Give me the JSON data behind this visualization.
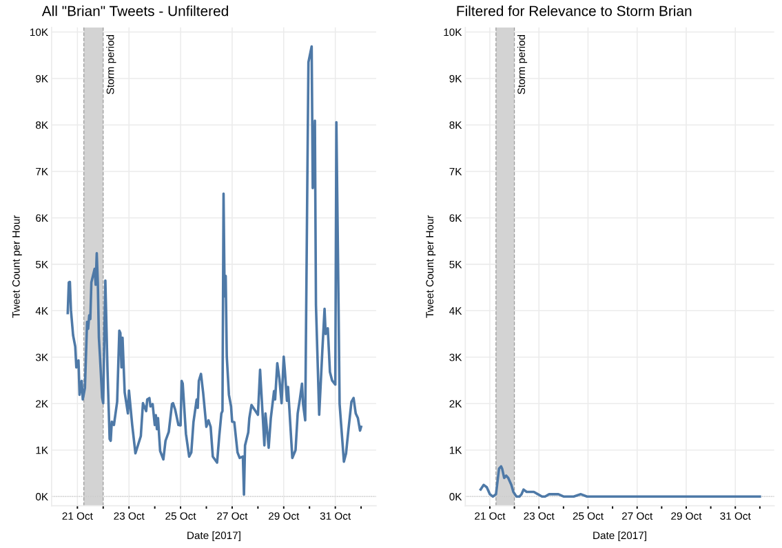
{
  "chart_data": [
    {
      "type": "line",
      "title": "All \"Brian\" Tweets - Unfiltered",
      "xlabel": "Date [2017]",
      "ylabel": "Tweet Count per Hour",
      "x": [
        "2017-10-20T15:00",
        "2017-10-20T16:00",
        "2017-10-20T17:00",
        "2017-10-20T18:00",
        "2017-10-20T20:00",
        "2017-10-20T22:00",
        "2017-10-20T23:00",
        "2017-10-21T01:00",
        "2017-10-21T02:00",
        "2017-10-21T04:00",
        "2017-10-21T05:00",
        "2017-10-21T07:00",
        "2017-10-21T09:00",
        "2017-10-21T10:00",
        "2017-10-21T11:00",
        "2017-10-21T12:00",
        "2017-10-21T13:00",
        "2017-10-21T16:00",
        "2017-10-21T17:00",
        "2017-10-21T18:00",
        "2017-10-21T19:00",
        "2017-10-21T20:00",
        "2017-10-21T21:00",
        "2017-10-21T23:00",
        "2017-10-22T00:00",
        "2017-10-22T02:00",
        "2017-10-22T04:00",
        "2017-10-22T06:00",
        "2017-10-22T07:00",
        "2017-10-22T08:00",
        "2017-10-22T10:00",
        "2017-10-22T13:00",
        "2017-10-22T15:00",
        "2017-10-22T16:00",
        "2017-10-22T17:00",
        "2017-10-22T18:00",
        "2017-10-22T20:00",
        "2017-10-22T23:00",
        "2017-10-23T00:00",
        "2017-10-23T03:00",
        "2017-10-23T06:00",
        "2017-10-23T11:00",
        "2017-10-23T13:00",
        "2017-10-23T16:00",
        "2017-10-23T17:00",
        "2017-10-23T19:00",
        "2017-10-23T20:00",
        "2017-10-23T22:00",
        "2017-10-24T00:00",
        "2017-10-24T01:00",
        "2017-10-24T02:00",
        "2017-10-24T03:00",
        "2017-10-24T05:00",
        "2017-10-24T08:00",
        "2017-10-24T10:00",
        "2017-10-24T13:00",
        "2017-10-24T16:00",
        "2017-10-24T17:00",
        "2017-10-24T19:00",
        "2017-10-24T22:00",
        "2017-10-25T00:00",
        "2017-10-25T01:00",
        "2017-10-25T02:00",
        "2017-10-25T05:00",
        "2017-10-25T08:00",
        "2017-10-25T10:00",
        "2017-10-25T12:00",
        "2017-10-25T15:00",
        "2017-10-25T16:00",
        "2017-10-25T17:00",
        "2017-10-25T19:00",
        "2017-10-25T21:00",
        "2017-10-26T00:00",
        "2017-10-26T02:00",
        "2017-10-26T04:00",
        "2017-10-26T06:00",
        "2017-10-26T10:00",
        "2017-10-26T12:00",
        "2017-10-26T14:00",
        "2017-10-26T15:00",
        "2017-10-26T16:00",
        "2017-10-26T17:00",
        "2017-10-26T18:00",
        "2017-10-26T19:00",
        "2017-10-26T21:00",
        "2017-10-26T23:00",
        "2017-10-27T00:00",
        "2017-10-27T02:00",
        "2017-10-27T05:00",
        "2017-10-27T07:00",
        "2017-10-27T10:00",
        "2017-10-27T11:00",
        "2017-10-27T12:00",
        "2017-10-27T15:00",
        "2017-10-27T16:00",
        "2017-10-27T18:00",
        "2017-10-27T20:00",
        "2017-10-28T00:00",
        "2017-10-28T02:00",
        "2017-10-28T06:00",
        "2017-10-28T07:00",
        "2017-10-28T10:00",
        "2017-10-28T12:00",
        "2017-10-28T15:00",
        "2017-10-28T16:00",
        "2017-10-28T18:00",
        "2017-10-28T20:00",
        "2017-10-28T22:00",
        "2017-10-29T00:00",
        "2017-10-29T01:00",
        "2017-10-29T03:00",
        "2017-10-29T04:00",
        "2017-10-29T06:00",
        "2017-10-29T08:00",
        "2017-10-29T11:00",
        "2017-10-29T13:00",
        "2017-10-29T15:00",
        "2017-10-29T17:00",
        "2017-10-29T18:00",
        "2017-10-29T20:00",
        "2017-10-29T22:00",
        "2017-10-29T23:00",
        "2017-10-30T02:00",
        "2017-10-30T03:00",
        "2017-10-30T05:00",
        "2017-10-30T06:00",
        "2017-10-30T09:00",
        "2017-10-30T12:00",
        "2017-10-30T14:00",
        "2017-10-30T15:00",
        "2017-10-30T17:00",
        "2017-10-30T19:00",
        "2017-10-30T21:00",
        "2017-10-31T00:00",
        "2017-10-31T01:00",
        "2017-10-31T03:00",
        "2017-10-31T04:00",
        "2017-10-31T08:00",
        "2017-10-31T10:00",
        "2017-10-31T12:00",
        "2017-10-31T15:00",
        "2017-10-31T17:00",
        "2017-10-31T19:00",
        "2017-10-31T21:00",
        "2017-10-31T23:00",
        "2017-11-01T00:00"
      ],
      "series": [
        {
          "color": "#4e79a7",
          "values": [
            3950,
            4610,
            4620,
            4010,
            3470,
            3230,
            2780,
            2930,
            2190,
            2490,
            2090,
            2340,
            3760,
            3610,
            3900,
            3820,
            4610,
            4900,
            4560,
            5240,
            4610,
            3420,
            3020,
            2130,
            2010,
            4650,
            2730,
            1240,
            1200,
            1610,
            1540,
            2040,
            3570,
            3520,
            2780,
            3420,
            2240,
            1790,
            2280,
            1540,
            930,
            1300,
            2010,
            1840,
            2090,
            2120,
            1940,
            1990,
            1540,
            1750,
            1450,
            1690,
            980,
            800,
            1200,
            1390,
            1990,
            2010,
            1870,
            1540,
            1530,
            2490,
            2430,
            1350,
            860,
            950,
            1600,
            2090,
            1910,
            2490,
            2640,
            2240,
            1500,
            1640,
            1500,
            860,
            730,
            1300,
            1790,
            1840,
            6520,
            4310,
            4750,
            3020,
            2190,
            1940,
            1610,
            1600,
            950,
            830,
            860,
            40,
            1100,
            1380,
            1690,
            1970,
            1900,
            1760,
            2730,
            1100,
            1790,
            1050,
            1690,
            2270,
            2090,
            2870,
            2530,
            2010,
            3010,
            2730,
            2060,
            2360,
            1600,
            830,
            1000,
            1790,
            2090,
            2430,
            1990,
            1640,
            6870,
            9350,
            9690,
            6640,
            8090,
            4120,
            1760,
            3170,
            4040,
            3500,
            3620,
            2680,
            2500,
            2410,
            8060,
            4160,
            1990,
            750,
            930,
            1390,
            2040,
            2120,
            1790,
            1690,
            1420,
            1500
          ]
        }
      ],
      "xlim": [
        "2017-10-20T00:00",
        "2017-11-01T14:00"
      ],
      "ylim": [
        -200,
        10100
      ],
      "xticks": [
        {
          "value": "2017-10-21",
          "label": "21 Oct"
        },
        {
          "value": "2017-10-22",
          "label": null
        },
        {
          "value": "2017-10-23",
          "label": "23 Oct"
        },
        {
          "value": "2017-10-24",
          "label": null
        },
        {
          "value": "2017-10-25",
          "label": "25 Oct"
        },
        {
          "value": "2017-10-26",
          "label": null
        },
        {
          "value": "2017-10-27",
          "label": "27 Oct"
        },
        {
          "value": "2017-10-28",
          "label": null
        },
        {
          "value": "2017-10-29",
          "label": "29 Oct"
        },
        {
          "value": "2017-10-30",
          "label": null
        },
        {
          "value": "2017-10-31",
          "label": "31 Oct"
        },
        {
          "value": "2017-11-01",
          "label": null
        }
      ],
      "yticks": [
        {
          "value": 0,
          "label": "0K"
        },
        {
          "value": 1000,
          "label": "1K"
        },
        {
          "value": 2000,
          "label": "2K"
        },
        {
          "value": 3000,
          "label": "3K"
        },
        {
          "value": 4000,
          "label": "4K"
        },
        {
          "value": 5000,
          "label": "5K"
        },
        {
          "value": 6000,
          "label": "6K"
        },
        {
          "value": 7000,
          "label": "7K"
        },
        {
          "value": 8000,
          "label": "8K"
        },
        {
          "value": 9000,
          "label": "9K"
        },
        {
          "value": 10000,
          "label": "10K"
        }
      ],
      "bands": [
        {
          "axis": "x",
          "from": "2017-10-21T06:00",
          "to": "2017-10-22T00:00",
          "label": "Storm period",
          "color": "#d3d3d3"
        }
      ],
      "ref_lines": [
        {
          "axis": "y",
          "value": 0,
          "color": "#c8c8c8",
          "line_style": "dotted"
        },
        {
          "axis": "x",
          "value": "2017-10-21T06:00",
          "color": "#999999",
          "line_style": "dashed"
        },
        {
          "axis": "x",
          "value": "2017-10-22T00:00",
          "color": "#999999",
          "line_style": "dashed"
        }
      ],
      "grid": true,
      "line_style": "solid",
      "marker": "none"
    },
    {
      "type": "line",
      "title": "Filtered for Relevance to Storm Brian",
      "xlabel": "Date [2017]",
      "ylabel": "Tweet Count per Hour",
      "x": [
        "2017-10-20T15:00",
        "2017-10-20T18:00",
        "2017-10-20T21:00",
        "2017-10-21T00:00",
        "2017-10-21T03:00",
        "2017-10-21T06:00",
        "2017-10-21T09:00",
        "2017-10-21T11:00",
        "2017-10-21T12:00",
        "2017-10-21T14:00",
        "2017-10-21T16:00",
        "2017-10-21T18:00",
        "2017-10-21T21:00",
        "2017-10-21T23:00",
        "2017-10-22T02:00",
        "2017-10-22T05:00",
        "2017-10-22T07:00",
        "2017-10-22T09:00",
        "2017-10-22T12:00",
        "2017-10-22T16:00",
        "2017-10-22T19:00",
        "2017-10-22T23:00",
        "2017-10-23T03:00",
        "2017-10-23T06:00",
        "2017-10-23T10:00",
        "2017-10-23T14:00",
        "2017-10-23T19:00",
        "2017-10-24T00:00",
        "2017-10-24T06:00",
        "2017-10-24T10:00",
        "2017-10-24T17:00",
        "2017-10-24T23:00",
        "2017-10-25T03:00",
        "2017-10-25T10:00",
        "2017-10-25T16:00",
        "2017-10-26T07:00",
        "2017-10-27T00:00",
        "2017-10-28T00:00",
        "2017-10-30T00:00",
        "2017-11-01T00:00"
      ],
      "series": [
        {
          "color": "#4e79a7",
          "values": [
            150,
            250,
            200,
            50,
            0,
            50,
            600,
            650,
            600,
            400,
            450,
            400,
            250,
            100,
            0,
            0,
            50,
            150,
            100,
            100,
            100,
            50,
            0,
            0,
            50,
            50,
            50,
            0,
            0,
            0,
            50,
            0,
            0,
            0,
            0,
            0,
            0,
            0,
            0,
            0
          ]
        }
      ],
      "xlim": [
        "2017-10-20T00:00",
        "2017-11-01T14:00"
      ],
      "ylim": [
        -200,
        10100
      ],
      "xticks": [
        {
          "value": "2017-10-21",
          "label": "21 Oct"
        },
        {
          "value": "2017-10-22",
          "label": null
        },
        {
          "value": "2017-10-23",
          "label": "23 Oct"
        },
        {
          "value": "2017-10-24",
          "label": null
        },
        {
          "value": "2017-10-25",
          "label": "25 Oct"
        },
        {
          "value": "2017-10-26",
          "label": null
        },
        {
          "value": "2017-10-27",
          "label": "27 Oct"
        },
        {
          "value": "2017-10-28",
          "label": null
        },
        {
          "value": "2017-10-29",
          "label": "29 Oct"
        },
        {
          "value": "2017-10-30",
          "label": null
        },
        {
          "value": "2017-10-31",
          "label": "31 Oct"
        },
        {
          "value": "2017-11-01",
          "label": null
        }
      ],
      "yticks": [
        {
          "value": 0,
          "label": "0K"
        },
        {
          "value": 1000,
          "label": "1K"
        },
        {
          "value": 2000,
          "label": "2K"
        },
        {
          "value": 3000,
          "label": "3K"
        },
        {
          "value": 4000,
          "label": "4K"
        },
        {
          "value": 5000,
          "label": "5K"
        },
        {
          "value": 6000,
          "label": "6K"
        },
        {
          "value": 7000,
          "label": "7K"
        },
        {
          "value": 8000,
          "label": "8K"
        },
        {
          "value": 9000,
          "label": "9K"
        },
        {
          "value": 10000,
          "label": "10K"
        }
      ],
      "bands": [
        {
          "axis": "x",
          "from": "2017-10-21T06:00",
          "to": "2017-10-22T00:00",
          "label": "Storm period",
          "color": "#d3d3d3"
        }
      ],
      "ref_lines": [
        {
          "axis": "y",
          "value": 0,
          "color": "#c8c8c8",
          "line_style": "dotted"
        },
        {
          "axis": "x",
          "value": "2017-10-21T06:00",
          "color": "#999999",
          "line_style": "dashed"
        },
        {
          "axis": "x",
          "value": "2017-10-22T00:00",
          "color": "#999999",
          "line_style": "dashed"
        }
      ],
      "grid": true,
      "line_style": "solid",
      "marker": "none"
    }
  ]
}
